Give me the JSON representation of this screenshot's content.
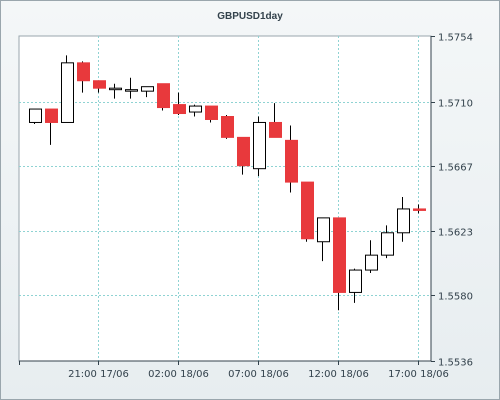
{
  "chart_data": {
    "type": "candlestick",
    "title": "GBPUSD1day",
    "x_tick_labels": [
      "21:00 17/06",
      "02:00 18/06",
      "07:00 18/06",
      "12:00 18/06",
      "17:00 18/06"
    ],
    "x_tick_candle_index": [
      4,
      9,
      14,
      19,
      24
    ],
    "y_ticks": [
      1.5536,
      1.558,
      1.5623,
      1.5667,
      1.571,
      1.5754
    ],
    "y_tick_labels": [
      "1.5536",
      "1.5580",
      "1.5623",
      "1.5667",
      "1.5710",
      "1.5754"
    ],
    "ylim": [
      1.5536,
      1.5754
    ],
    "grid": true,
    "colors": {
      "up_body": "#ffffff",
      "down_body": "#e8393c",
      "outline": "#000000",
      "grid": "#8fd3d3",
      "axis": "#33424c"
    },
    "candles": [
      {
        "o": 1.5696,
        "h": 1.5705,
        "l": 1.5695,
        "c": 1.5705
      },
      {
        "o": 1.5705,
        "h": 1.5705,
        "l": 1.5681,
        "c": 1.5696
      },
      {
        "o": 1.5696,
        "h": 1.5741,
        "l": 1.5696,
        "c": 1.5736
      },
      {
        "o": 1.5736,
        "h": 1.5737,
        "l": 1.5716,
        "c": 1.5724
      },
      {
        "o": 1.5724,
        "h": 1.5724,
        "l": 1.5716,
        "c": 1.5719
      },
      {
        "o": 1.5719,
        "h": 1.5722,
        "l": 1.5712,
        "c": 1.5719
      },
      {
        "o": 1.5718,
        "h": 1.5726,
        "l": 1.5712,
        "c": 1.5718
      },
      {
        "o": 1.5717,
        "h": 1.572,
        "l": 1.5713,
        "c": 1.572
      },
      {
        "o": 1.5722,
        "h": 1.5722,
        "l": 1.5704,
        "c": 1.5706
      },
      {
        "o": 1.5708,
        "h": 1.5716,
        "l": 1.5701,
        "c": 1.5702
      },
      {
        "o": 1.5703,
        "h": 1.5708,
        "l": 1.57,
        "c": 1.5707
      },
      {
        "o": 1.5707,
        "h": 1.5707,
        "l": 1.5696,
        "c": 1.5698
      },
      {
        "o": 1.57,
        "h": 1.5701,
        "l": 1.5685,
        "c": 1.5686
      },
      {
        "o": 1.5686,
        "h": 1.5686,
        "l": 1.5661,
        "c": 1.5667
      },
      {
        "o": 1.5665,
        "h": 1.57,
        "l": 1.566,
        "c": 1.5696
      },
      {
        "o": 1.5696,
        "h": 1.5709,
        "l": 1.5686,
        "c": 1.5686
      },
      {
        "o": 1.5684,
        "h": 1.5694,
        "l": 1.5649,
        "c": 1.5656
      },
      {
        "o": 1.5656,
        "h": 1.5656,
        "l": 1.5616,
        "c": 1.5618
      },
      {
        "o": 1.5616,
        "h": 1.5632,
        "l": 1.5603,
        "c": 1.5632
      },
      {
        "o": 1.5632,
        "h": 1.5632,
        "l": 1.557,
        "c": 1.5582
      },
      {
        "o": 1.5582,
        "h": 1.5598,
        "l": 1.5575,
        "c": 1.5597
      },
      {
        "o": 1.5597,
        "h": 1.5617,
        "l": 1.5595,
        "c": 1.5607
      },
      {
        "o": 1.5607,
        "h": 1.5627,
        "l": 1.5605,
        "c": 1.5622
      },
      {
        "o": 1.5622,
        "h": 1.5646,
        "l": 1.5616,
        "c": 1.5638
      },
      {
        "o": 1.5638,
        "h": 1.5641,
        "l": 1.5635,
        "c": 1.5637
      }
    ]
  }
}
